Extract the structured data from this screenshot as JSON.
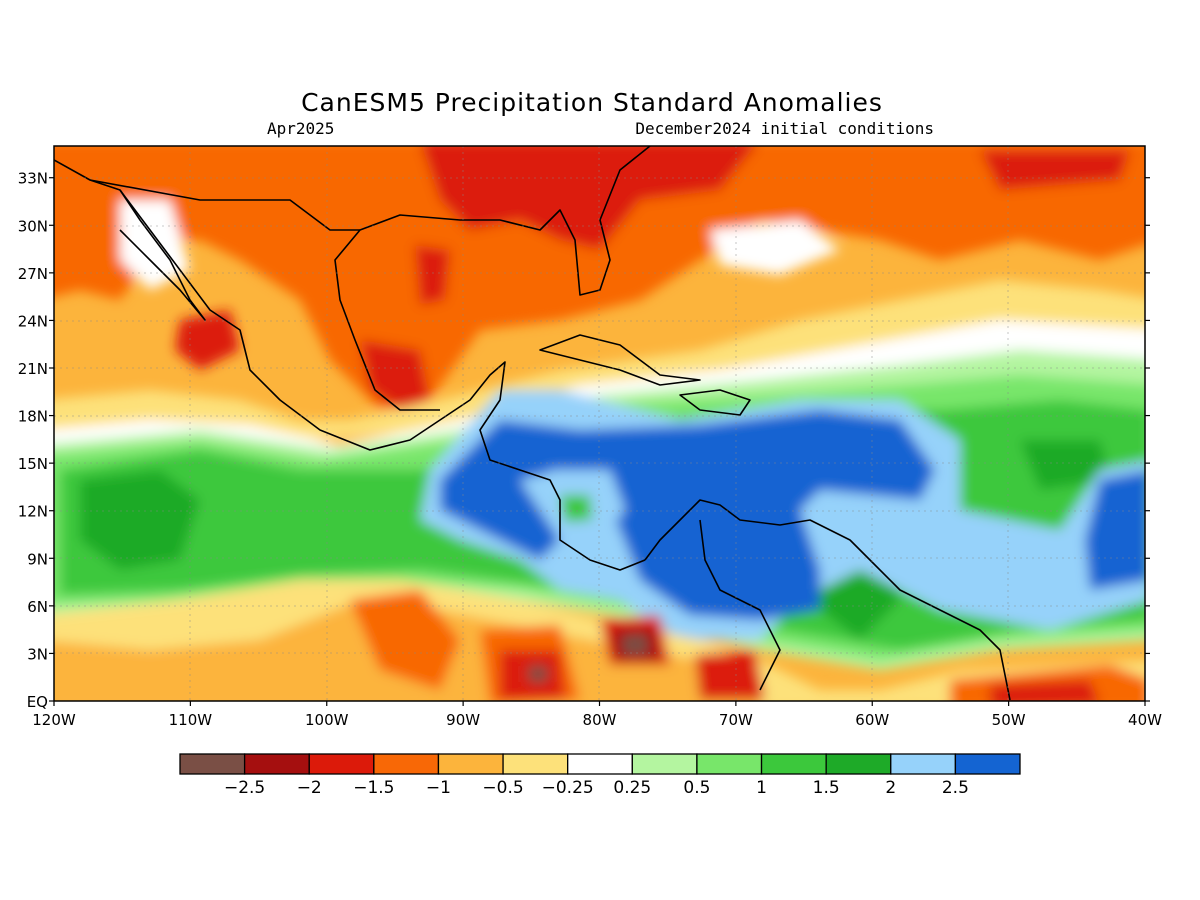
{
  "header": {
    "title": "CanESM5 Precipitation Standard Anomalies",
    "subtitle_left": "Apr2025",
    "subtitle_right": "December2024 initial conditions"
  },
  "map": {
    "lat_labels": [
      "33N",
      "30N",
      "27N",
      "24N",
      "21N",
      "18N",
      "15N",
      "12N",
      "9N",
      "6N",
      "3N",
      "EQ"
    ],
    "lon_labels": [
      "120W",
      "110W",
      "100W",
      "90W",
      "80W",
      "70W",
      "60W",
      "50W",
      "40W"
    ],
    "colors": {
      "neg_2_5": "#7a4f45",
      "neg_2": "#a50f0f",
      "neg_1_5": "#dc1a0a",
      "neg_1": "#f86806",
      "neg_0_5": "#fcb43c",
      "neg_0_25": "#fde17a",
      "neutral": "#ffffff",
      "pos_0_25": "#b4f5a0",
      "pos_0_5": "#78e66a",
      "pos_1": "#3cc83c",
      "pos_1_5": "#1eaa28",
      "pos_2": "#96d2fa",
      "pos_2_5": "#1464d2"
    }
  },
  "legend": {
    "swatches": [
      "#7a4f45",
      "#a50f0f",
      "#dc1a0a",
      "#f86806",
      "#fcb43c",
      "#fde17a",
      "#ffffff",
      "#b4f5a0",
      "#78e66a",
      "#3cc83c",
      "#1eaa28",
      "#96d2fa",
      "#1464d2"
    ],
    "labels": [
      "−2.5",
      "−2",
      "−1.5",
      "−1",
      "−0.5",
      "−0.25",
      "0.25",
      "0.5",
      "1",
      "1.5",
      "2",
      "2.5"
    ]
  }
}
